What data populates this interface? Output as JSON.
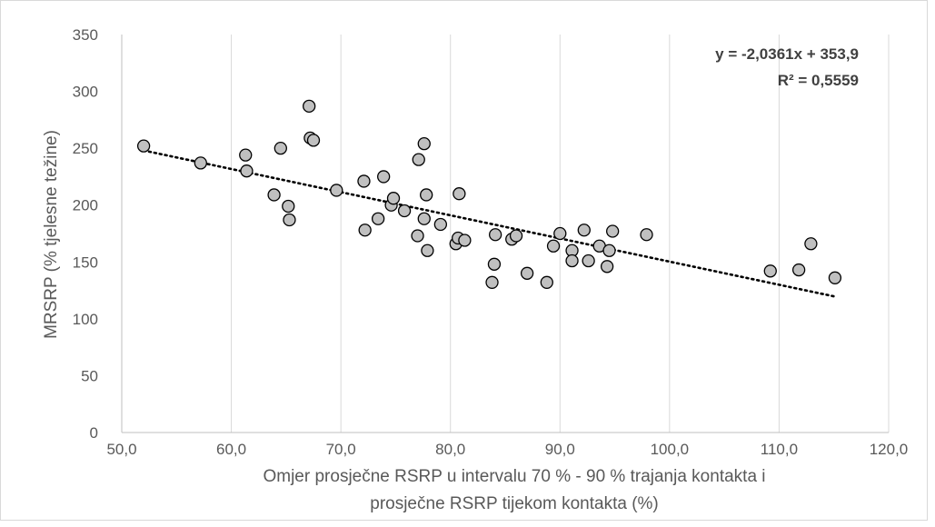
{
  "chart_data": {
    "type": "scatter",
    "title": "",
    "xlabel_lines": [
      "Omjer prosječne RSRP u intervalu 70 % - 90 % trajanja kontakta i",
      "prosječne RSRP tijekom kontakta (%)"
    ],
    "ylabel": "MRSRP (% tjelesne težine)",
    "xlim": [
      50,
      120
    ],
    "ylim": [
      0,
      350
    ],
    "xticks": [
      50,
      60,
      70,
      80,
      90,
      100,
      110,
      120
    ],
    "yticks": [
      0,
      50,
      100,
      150,
      200,
      250,
      300,
      350
    ],
    "xtick_labels": [
      "50,0",
      "60,0",
      "70,0",
      "80,0",
      "90,0",
      "100,0",
      "110,0",
      "120,0"
    ],
    "ytick_labels": [
      "0",
      "50",
      "100",
      "150",
      "200",
      "250",
      "300",
      "350"
    ],
    "grid": "vertical",
    "points": {
      "x": [
        52.0,
        57.2,
        61.3,
        61.4,
        63.9,
        64.5,
        65.2,
        65.3,
        67.1,
        67.2,
        67.5,
        69.6,
        72.1,
        72.2,
        73.4,
        73.9,
        74.6,
        74.8,
        75.8,
        77.0,
        77.1,
        77.6,
        77.6,
        77.8,
        77.9,
        79.1,
        80.5,
        80.7,
        80.8,
        81.3,
        83.8,
        84.0,
        84.1,
        85.6,
        86.0,
        87.0,
        88.8,
        89.4,
        90.0,
        91.1,
        91.1,
        92.2,
        92.6,
        93.6,
        94.3,
        94.5,
        94.8,
        97.9,
        109.2,
        111.8,
        112.9,
        115.1
      ],
      "y": [
        252,
        237,
        244,
        230,
        209,
        250,
        199,
        187,
        287,
        259,
        257,
        213,
        221,
        178,
        188,
        225,
        200,
        206,
        195,
        173,
        240,
        254,
        188,
        209,
        160,
        183,
        166,
        171,
        210,
        169,
        132,
        148,
        174,
        170,
        173,
        140,
        132,
        164,
        175,
        160,
        151,
        178,
        151,
        164,
        146,
        160,
        177,
        174,
        142,
        143,
        166,
        136
      ]
    },
    "trendline": {
      "type": "linear",
      "slope": -2.0361,
      "intercept": 353.9,
      "x_range": [
        52.0,
        115.1
      ],
      "equation_label": "y = -2,0361x + 353,9",
      "r2_label": "R² = 0,5559"
    },
    "marker_fill": "#c0c0c0",
    "marker_stroke": "#000000",
    "trendline_color": "#000000"
  }
}
